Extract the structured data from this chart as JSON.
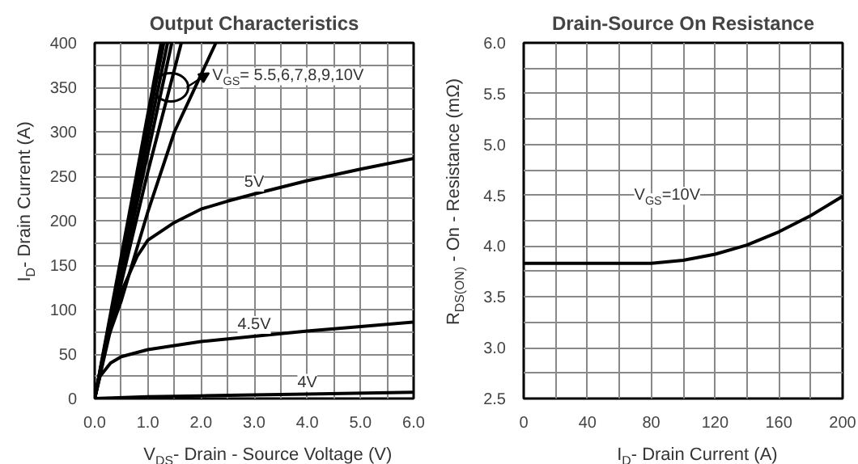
{
  "chart_data": [
    {
      "type": "line",
      "title": "Output Characteristics",
      "xlabel": "V$_{DS}$- Drain - Source Voltage (V)",
      "ylabel": "I$_{D}$- Drain Current (A)",
      "xlim": [
        0,
        6
      ],
      "ylim": [
        0,
        400
      ],
      "xticks": [
        {
          "value": 0,
          "label": "0.0"
        },
        {
          "value": 0.5,
          "label": null
        },
        {
          "value": 1,
          "label": "1.0"
        },
        {
          "value": 1.5,
          "label": null
        },
        {
          "value": 2,
          "label": "2.0"
        },
        {
          "value": 2.5,
          "label": null
        },
        {
          "value": 3,
          "label": "3.0"
        },
        {
          "value": 3.5,
          "label": null
        },
        {
          "value": 4,
          "label": "4.0"
        },
        {
          "value": 4.5,
          "label": null
        },
        {
          "value": 5,
          "label": "5.0"
        },
        {
          "value": 5.5,
          "label": null
        },
        {
          "value": 6,
          "label": "6.0"
        }
      ],
      "yticks": [
        0,
        {
          "value": 25,
          "label": null
        },
        50,
        {
          "value": 75,
          "label": null
        },
        100,
        {
          "value": 125,
          "label": null
        },
        150,
        {
          "value": 175,
          "label": null
        },
        200,
        {
          "value": 225,
          "label": null
        },
        250,
        {
          "value": 275,
          "label": null
        },
        300,
        {
          "value": 325,
          "label": null
        },
        350,
        {
          "value": 375,
          "label": null
        },
        400
      ],
      "grid": true,
      "marker": "none",
      "line_style": "solid",
      "series": [
        {
          "color": "#000000",
          "x": [
            0,
            1.25
          ],
          "values": [
            0,
            400
          ]
        },
        {
          "color": "#000000",
          "x": [
            0,
            1.3
          ],
          "values": [
            0,
            400
          ]
        },
        {
          "color": "#000000",
          "x": [
            0,
            1.37
          ],
          "values": [
            0,
            400
          ]
        },
        {
          "color": "#000000",
          "x": [
            0,
            1.45
          ],
          "values": [
            0,
            400
          ]
        },
        {
          "color": "#000000",
          "x": [
            0,
            0.5,
            1.0,
            1.63
          ],
          "values": [
            0,
            130,
            255,
            400
          ]
        },
        {
          "color": "#000000",
          "x": [
            0,
            0.2,
            0.5,
            1.0,
            1.5,
            2.28
          ],
          "values": [
            0,
            60,
            110,
            210,
            300,
            400
          ]
        },
        {
          "name": "5V",
          "color": "#000000",
          "x": [
            0,
            0.2,
            0.5,
            0.8,
            1.0,
            1.5,
            2.0,
            2.5,
            3.0,
            4.0,
            5.0,
            6.0
          ],
          "values": [
            0,
            60,
            120,
            160,
            178,
            198,
            213,
            222,
            230,
            245,
            258,
            270
          ]
        },
        {
          "name": "4.5V",
          "color": "#000000",
          "x": [
            0,
            0.1,
            0.3,
            0.5,
            1.0,
            2.0,
            3.0,
            4.0,
            5.0,
            6.0
          ],
          "values": [
            0,
            25,
            40,
            47,
            55,
            64,
            70,
            76,
            81,
            86
          ]
        },
        {
          "name": "4V",
          "color": "#000000",
          "x": [
            0,
            1,
            2,
            3,
            4,
            6
          ],
          "values": [
            0,
            2,
            3,
            4,
            5,
            7
          ]
        }
      ],
      "annotations": [
        {
          "text": "V$_{GS}$= 5.5,6,7,8,9,10V",
          "x": 1.43,
          "y": 350
        }
      ]
    },
    {
      "type": "line",
      "title": "Drain-Source On Resistance",
      "xlabel": "I$_{D}$- Drain Current (A)",
      "ylabel": "R$_{DS(ON)}$ - On - Resistance (mΩ)",
      "xlim": [
        0,
        200
      ],
      "ylim": [
        2.5,
        6.0
      ],
      "xticks": [
        0,
        {
          "value": 20,
          "label": null
        },
        40,
        {
          "value": 60,
          "label": null
        },
        80,
        {
          "value": 100,
          "label": null
        },
        120,
        {
          "value": 140,
          "label": null
        },
        160,
        {
          "value": 180,
          "label": null
        },
        200
      ],
      "yticks": [
        2.5,
        {
          "value": 2.75,
          "label": null
        },
        {
          "value": 3.0,
          "label": "3.0"
        },
        {
          "value": 3.25,
          "label": null
        },
        3.5,
        {
          "value": 3.75,
          "label": null
        },
        {
          "value": 4.0,
          "label": "4.0"
        },
        {
          "value": 4.25,
          "label": null
        },
        4.5,
        {
          "value": 4.75,
          "label": null
        },
        {
          "value": 5.0,
          "label": "5.0"
        },
        {
          "value": 5.25,
          "label": null
        },
        5.5,
        {
          "value": 5.75,
          "label": null
        },
        {
          "value": 6.0,
          "label": "6.0"
        }
      ],
      "grid": true,
      "marker": "none",
      "line_style": "solid",
      "series": [
        {
          "color": "#000000",
          "x": [
            0,
            40,
            80,
            100,
            120,
            140,
            160,
            180,
            200
          ],
          "values": [
            3.83,
            3.83,
            3.83,
            3.86,
            3.92,
            4.01,
            4.14,
            4.3,
            4.49
          ]
        }
      ],
      "annotations": [
        "V$_{GS}$=10V"
      ]
    }
  ]
}
